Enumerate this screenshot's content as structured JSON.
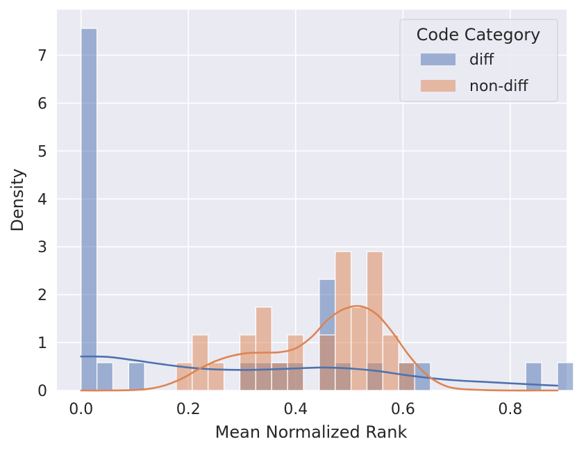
{
  "chart_data": {
    "type": "histogram",
    "title": "",
    "xlabel": "Mean Normalized Rank",
    "ylabel": "Density",
    "xlim": [
      -0.045,
      0.905
    ],
    "ylim": [
      0,
      7.95
    ],
    "xticks": [
      0.0,
      0.2,
      0.4,
      0.6,
      0.8
    ],
    "xtick_labels": [
      "0.0",
      "0.2",
      "0.4",
      "0.6",
      "0.8"
    ],
    "yticks": [
      0,
      1,
      2,
      3,
      4,
      5,
      6,
      7
    ],
    "ytick_labels": [
      "0",
      "1",
      "2",
      "3",
      "4",
      "5",
      "6",
      "7"
    ],
    "grid": true,
    "bin_width": 0.0296,
    "legend": {
      "title": "Code Category",
      "position": "top-right",
      "entries": [
        "diff",
        "non-diff"
      ]
    },
    "colors": {
      "diff": "#4c72b0",
      "non-diff": "#dd8452",
      "background": "#eaeaf2",
      "grid": "#ffffff"
    },
    "series": [
      {
        "name": "diff",
        "bins": [
          {
            "x0": 0.0,
            "value": 7.56
          },
          {
            "x0": 0.0296,
            "value": 0.58
          },
          {
            "x0": 0.0888,
            "value": 0.58
          },
          {
            "x0": 0.2961,
            "value": 0.58
          },
          {
            "x0": 0.3257,
            "value": 0.58
          },
          {
            "x0": 0.3553,
            "value": 0.58
          },
          {
            "x0": 0.3849,
            "value": 0.58
          },
          {
            "x0": 0.4441,
            "value": 2.32
          },
          {
            "x0": 0.4737,
            "value": 0.58
          },
          {
            "x0": 0.5329,
            "value": 0.58
          },
          {
            "x0": 0.5921,
            "value": 0.58
          },
          {
            "x0": 0.6217,
            "value": 0.58
          },
          {
            "x0": 0.8289,
            "value": 0.58
          },
          {
            "x0": 0.8881,
            "value": 0.58
          }
        ],
        "kde": {
          "x": [
            0.0,
            0.05,
            0.1,
            0.15,
            0.2,
            0.25,
            0.3,
            0.35,
            0.4,
            0.45,
            0.5,
            0.55,
            0.6,
            0.65,
            0.7,
            0.75,
            0.8,
            0.85,
            0.888
          ],
          "y": [
            0.71,
            0.7,
            0.63,
            0.55,
            0.48,
            0.44,
            0.43,
            0.44,
            0.46,
            0.48,
            0.46,
            0.41,
            0.33,
            0.26,
            0.21,
            0.18,
            0.15,
            0.12,
            0.1
          ]
        }
      },
      {
        "name": "non-diff",
        "bins": [
          {
            "x0": 0.1776,
            "value": 0.58
          },
          {
            "x0": 0.2072,
            "value": 1.16
          },
          {
            "x0": 0.2368,
            "value": 0.58
          },
          {
            "x0": 0.2961,
            "value": 1.16
          },
          {
            "x0": 0.3257,
            "value": 1.74
          },
          {
            "x0": 0.3553,
            "value": 0.58
          },
          {
            "x0": 0.3849,
            "value": 1.16
          },
          {
            "x0": 0.4441,
            "value": 1.16
          },
          {
            "x0": 0.4737,
            "value": 2.9
          },
          {
            "x0": 0.5033,
            "value": 1.74
          },
          {
            "x0": 0.5329,
            "value": 2.9
          },
          {
            "x0": 0.5625,
            "value": 1.16
          },
          {
            "x0": 0.5921,
            "value": 0.58
          }
        ],
        "kde": {
          "x": [
            0.0,
            0.05,
            0.1,
            0.13,
            0.16,
            0.19,
            0.22,
            0.25,
            0.28,
            0.31,
            0.34,
            0.37,
            0.4,
            0.43,
            0.46,
            0.49,
            0.52,
            0.55,
            0.58,
            0.61,
            0.64,
            0.67,
            0.7,
            0.75,
            0.8,
            0.85,
            0.888
          ],
          "y": [
            0.0,
            0.0,
            0.01,
            0.04,
            0.12,
            0.26,
            0.45,
            0.61,
            0.72,
            0.78,
            0.79,
            0.8,
            0.88,
            1.12,
            1.48,
            1.7,
            1.76,
            1.6,
            1.22,
            0.75,
            0.37,
            0.14,
            0.04,
            0.01,
            0.0,
            0.0,
            0.0
          ]
        }
      }
    ]
  }
}
